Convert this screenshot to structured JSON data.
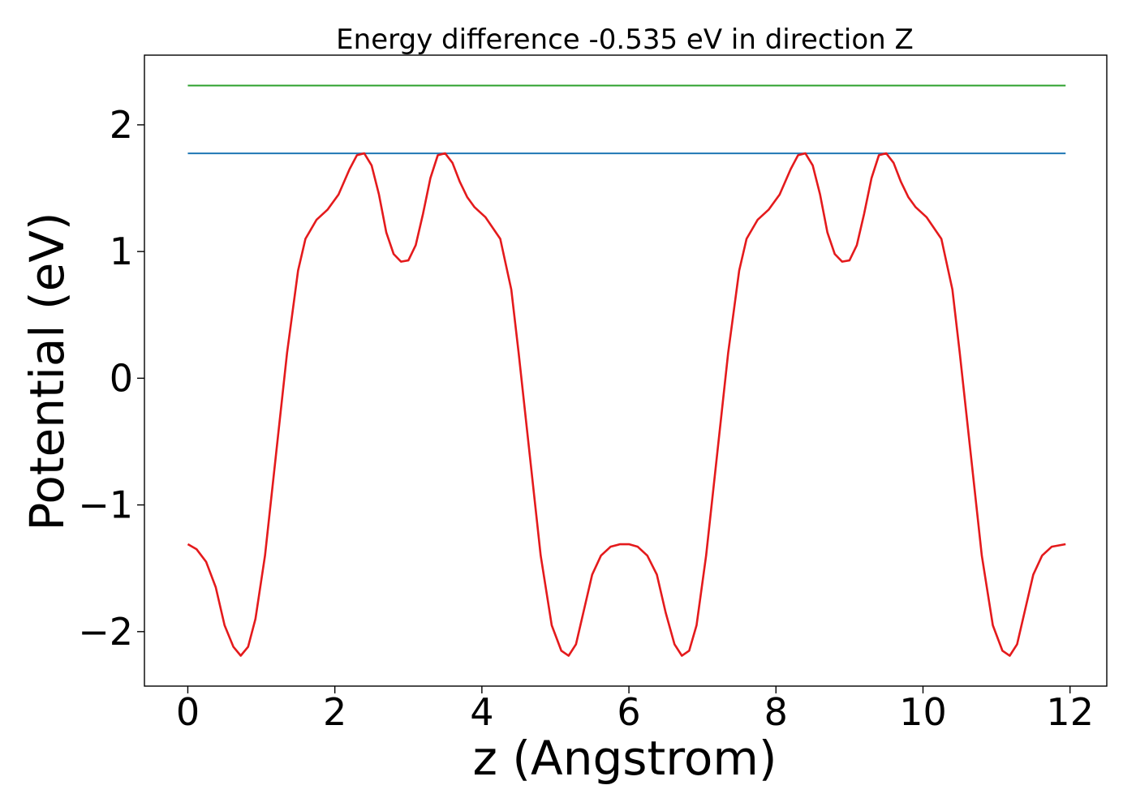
{
  "chart_data": {
    "type": "line",
    "title": "Energy difference -0.535 eV in direction Z",
    "xlabel": "z (Angstrom)",
    "ylabel": "Potential (eV)",
    "xlim": [
      -0.59,
      12.5
    ],
    "ylim": [
      -2.43,
      2.55
    ],
    "x_ticks": [
      0,
      2,
      4,
      6,
      8,
      10,
      12
    ],
    "x_tick_labels": [
      "0",
      "2",
      "4",
      "6",
      "8",
      "10",
      "12"
    ],
    "y_ticks": [
      -2,
      -1,
      0,
      1,
      2
    ],
    "y_tick_labels": [
      "−2",
      "−1",
      "0",
      "1",
      "2"
    ],
    "grid": false,
    "legend": "none",
    "series": [
      {
        "color": "#2ca02c",
        "style": "horizontal",
        "x": [
          0,
          11.94
        ],
        "y": [
          2.31,
          2.31
        ]
      },
      {
        "color": "#1f77b4",
        "style": "horizontal",
        "x": [
          0,
          11.94
        ],
        "y": [
          1.775,
          1.775
        ]
      },
      {
        "color": "#e41a1c",
        "style": "line",
        "x": [
          0,
          0.12,
          0.25,
          0.38,
          0.5,
          0.62,
          0.72,
          0.82,
          0.92,
          1.05,
          1.2,
          1.35,
          1.5,
          1.6,
          1.75,
          1.9,
          2.05,
          2.2,
          2.3,
          2.4,
          2.5,
          2.6,
          2.7,
          2.8,
          2.9,
          3.0,
          3.1,
          3.2,
          3.3,
          3.4,
          3.5,
          3.6,
          3.7,
          3.8,
          3.9,
          4.05,
          4.25,
          4.4,
          4.5,
          4.65,
          4.8,
          4.95,
          5.08,
          5.18,
          5.28,
          5.38,
          5.5,
          5.62,
          5.75,
          5.88,
          6.0,
          6.12,
          6.25,
          6.38,
          6.5,
          6.62,
          6.72,
          6.82,
          6.92,
          7.05,
          7.2,
          7.35,
          7.5,
          7.6,
          7.75,
          7.9,
          8.05,
          8.2,
          8.3,
          8.4,
          8.5,
          8.6,
          8.7,
          8.8,
          8.9,
          9.0,
          9.1,
          9.2,
          9.3,
          9.4,
          9.5,
          9.6,
          9.7,
          9.8,
          9.9,
          10.05,
          10.25,
          10.4,
          10.5,
          10.65,
          10.8,
          10.95,
          11.08,
          11.18,
          11.28,
          11.38,
          11.5,
          11.62,
          11.75,
          11.94
        ],
        "y": [
          -1.31,
          -1.35,
          -1.45,
          -1.65,
          -1.95,
          -2.12,
          -2.19,
          -2.12,
          -1.9,
          -1.4,
          -0.6,
          0.2,
          0.85,
          1.1,
          1.25,
          1.33,
          1.45,
          1.65,
          1.76,
          1.775,
          1.68,
          1.45,
          1.15,
          0.98,
          0.92,
          0.93,
          1.05,
          1.3,
          1.58,
          1.76,
          1.775,
          1.7,
          1.55,
          1.43,
          1.35,
          1.27,
          1.1,
          0.7,
          0.2,
          -0.6,
          -1.4,
          -1.95,
          -2.15,
          -2.19,
          -2.1,
          -1.85,
          -1.55,
          -1.4,
          -1.33,
          -1.31,
          -1.31,
          -1.33,
          -1.4,
          -1.55,
          -1.85,
          -2.1,
          -2.19,
          -2.15,
          -1.95,
          -1.4,
          -0.6,
          0.2,
          0.85,
          1.1,
          1.25,
          1.33,
          1.45,
          1.65,
          1.76,
          1.775,
          1.68,
          1.45,
          1.15,
          0.98,
          0.92,
          0.93,
          1.05,
          1.3,
          1.58,
          1.76,
          1.775,
          1.7,
          1.55,
          1.43,
          1.35,
          1.27,
          1.1,
          0.7,
          0.2,
          -0.6,
          -1.4,
          -1.95,
          -2.15,
          -2.19,
          -2.1,
          -1.85,
          -1.55,
          -1.4,
          -1.33,
          -1.31
        ]
      }
    ]
  }
}
